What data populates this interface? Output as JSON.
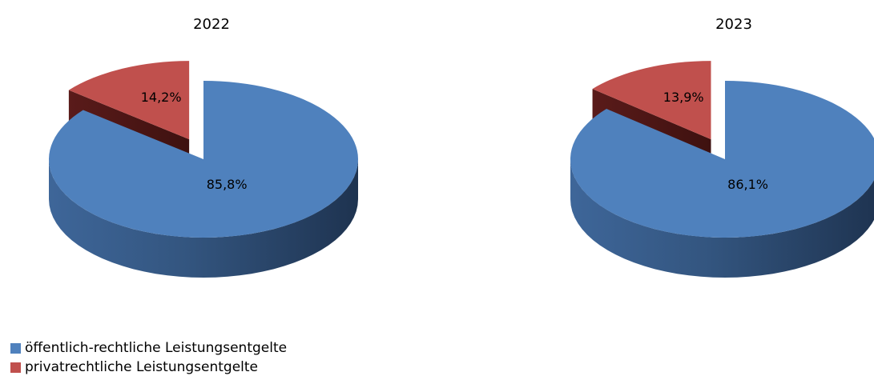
{
  "chart_data": {
    "type": "pie",
    "legend_position": "bottom-left",
    "series": [
      {
        "name": "öffentlich-rechtliche Leistungsentgelte",
        "color": "#4F81BD"
      },
      {
        "name": "privatrechtliche Leistungsentgelte",
        "color": "#C0504D"
      }
    ],
    "pies": [
      {
        "title": "2022",
        "values": [
          85.8,
          14.2
        ],
        "labels": [
          "85,8%",
          "14,2%"
        ]
      },
      {
        "title": "2023",
        "values": [
          86.1,
          13.9
        ],
        "labels": [
          "86,1%",
          "13,9%"
        ]
      }
    ]
  }
}
